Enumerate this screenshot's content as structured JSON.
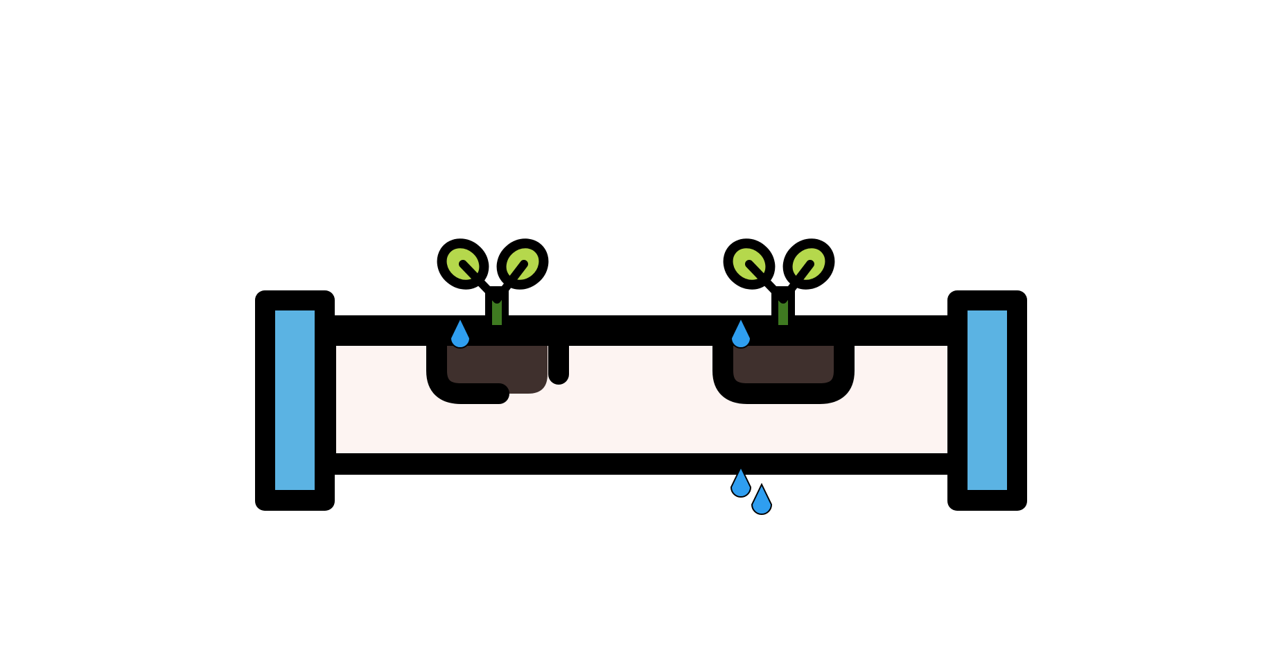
{
  "illustration": {
    "icon": "hydroponic-pipe-with-seedlings-icon",
    "colors": {
      "outline": "#000000",
      "cap_fill": "#5bb3e3",
      "pipe_fill": "#fdf4f2",
      "soil_fill": "#3f302d",
      "leaf_fill": "#b5d84c",
      "stem_fill": "#3f7a21",
      "water_drop": "#2f9ef0"
    },
    "seedlings": [
      {
        "name": "seedling-left"
      },
      {
        "name": "seedling-right"
      }
    ],
    "water_drops": [
      {
        "name": "drop-left-pot"
      },
      {
        "name": "drop-right-pot"
      },
      {
        "name": "drop-under-pipe-1"
      },
      {
        "name": "drop-under-pipe-2"
      }
    ]
  }
}
